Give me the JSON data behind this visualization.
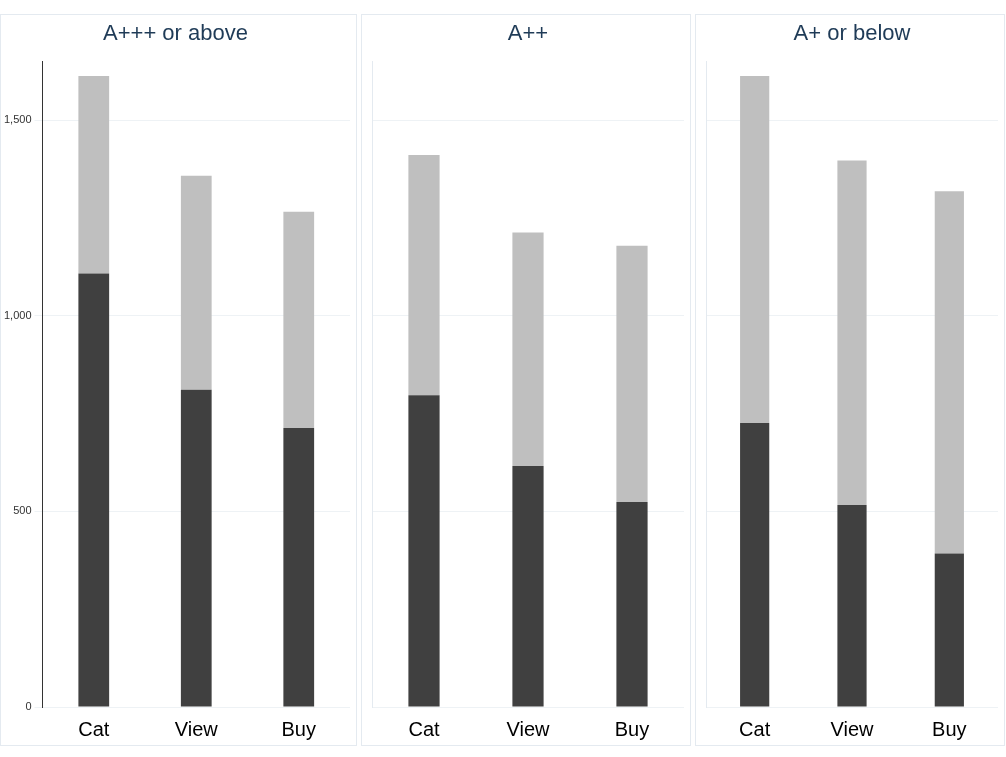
{
  "chart_data": [
    {
      "type": "bar",
      "title": "A+++ or above",
      "categories": [
        "Cat",
        "View",
        "Buy"
      ],
      "stacked": true,
      "ylim": [
        0,
        1650
      ],
      "yticks": [
        0,
        500,
        {
          "value": 1000,
          "label": "1,000"
        },
        {
          "value": 1500,
          "label": "1,500"
        }
      ],
      "grid": "y",
      "series": [
        {
          "color": "#404040",
          "values": [
            1108,
            811,
            713
          ]
        },
        {
          "color": "#bfbfbf",
          "values": [
            505,
            547,
            553
          ]
        }
      ]
    },
    {
      "type": "bar",
      "title": "A++",
      "categories": [
        "Cat",
        "View",
        "Buy"
      ],
      "stacked": true,
      "ylim": [
        0,
        1650
      ],
      "yticks": [
        0,
        500,
        1000,
        1500
      ],
      "grid": "y",
      "tick_labels": "x",
      "series": [
        {
          "color": "#404040",
          "values": [
            797,
            616,
            524
          ]
        },
        {
          "color": "#bfbfbf",
          "values": [
            614,
            597,
            655
          ]
        }
      ]
    },
    {
      "type": "bar",
      "title": "A+ or below",
      "categories": [
        "Cat",
        "View",
        "Buy"
      ],
      "stacked": true,
      "ylim": [
        0,
        1650
      ],
      "yticks": [
        0,
        500,
        1000,
        1500
      ],
      "grid": "y",
      "tick_labels": "x",
      "series": [
        {
          "color": "#404040",
          "values": [
            726,
            516,
            392
          ]
        },
        {
          "color": "#bfbfbf",
          "values": [
            887,
            881,
            926
          ]
        }
      ]
    }
  ]
}
